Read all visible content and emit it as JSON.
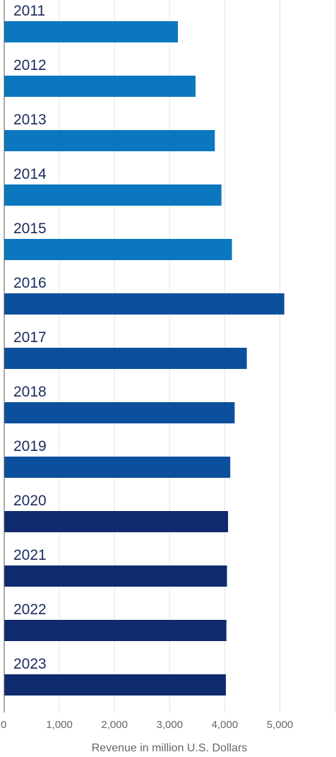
{
  "chart_data": {
    "type": "bar",
    "orientation": "horizontal",
    "categories": [
      "2011",
      "2012",
      "2013",
      "2014",
      "2015",
      "2016",
      "2017",
      "2018",
      "2019",
      "2020",
      "2021",
      "2022",
      "2023"
    ],
    "values": [
      3150,
      3470,
      3820,
      3940,
      4130,
      5080,
      4400,
      4180,
      4100,
      4060,
      4040,
      4030,
      4020
    ],
    "bar_colors": [
      "#0a77bf",
      "#0a77bf",
      "#0a77bf",
      "#0a77bf",
      "#0a77bf",
      "#0c4f9c",
      "#0c4f9c",
      "#0c4f9c",
      "#0c4f9c",
      "#0f2a6e",
      "#0f2a6e",
      "#0f2a6e",
      "#0f2a6e"
    ],
    "xlabel": "Revenue in million U.S. Dollars",
    "xlim": [
      0,
      6000
    ],
    "x_ticks": [
      0,
      1000,
      2000,
      3000,
      4000,
      5000
    ],
    "x_tick_labels": [
      "0",
      "1,000",
      "2,000",
      "3,000",
      "4,000",
      "5,000"
    ],
    "grid": true
  }
}
